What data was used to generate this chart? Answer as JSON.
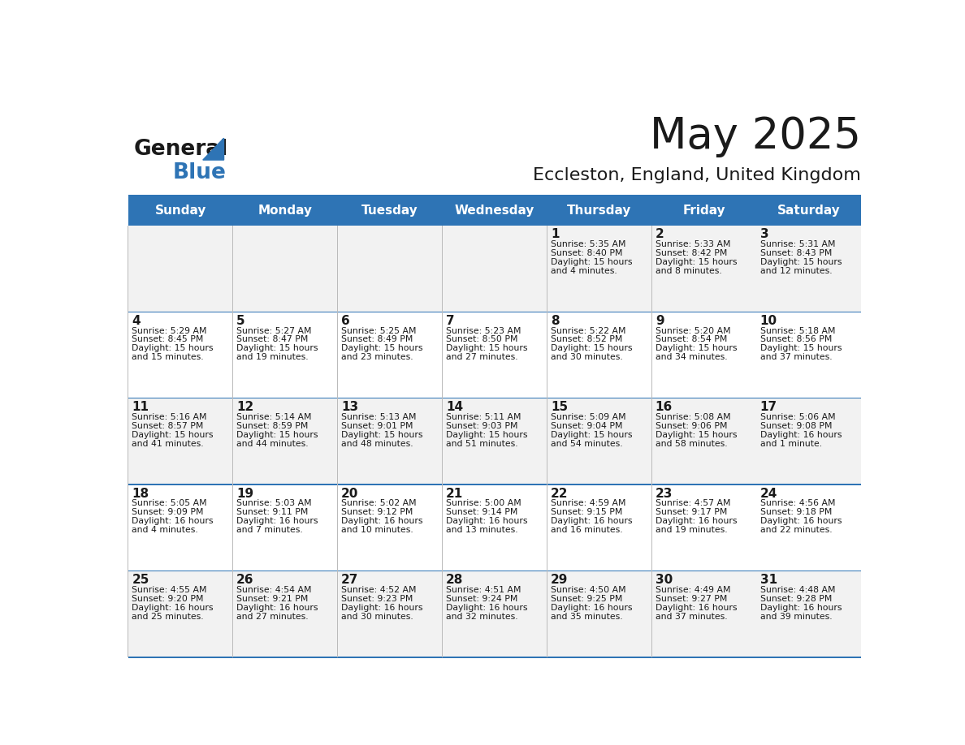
{
  "title": "May 2025",
  "subtitle": "Eccleston, England, United Kingdom",
  "header_color": "#2E74B5",
  "header_text_color": "#FFFFFF",
  "cell_bg_even": "#F2F2F2",
  "cell_bg_odd": "#FFFFFF",
  "day_headers": [
    "Sunday",
    "Monday",
    "Tuesday",
    "Wednesday",
    "Thursday",
    "Friday",
    "Saturday"
  ],
  "logo_text1": "General",
  "logo_text2": "Blue",
  "weeks": [
    [
      {
        "day": "",
        "sunrise": "",
        "sunset": "",
        "daylight": ""
      },
      {
        "day": "",
        "sunrise": "",
        "sunset": "",
        "daylight": ""
      },
      {
        "day": "",
        "sunrise": "",
        "sunset": "",
        "daylight": ""
      },
      {
        "day": "",
        "sunrise": "",
        "sunset": "",
        "daylight": ""
      },
      {
        "day": "1",
        "sunrise": "Sunrise: 5:35 AM",
        "sunset": "Sunset: 8:40 PM",
        "daylight": "Daylight: 15 hours\nand 4 minutes."
      },
      {
        "day": "2",
        "sunrise": "Sunrise: 5:33 AM",
        "sunset": "Sunset: 8:42 PM",
        "daylight": "Daylight: 15 hours\nand 8 minutes."
      },
      {
        "day": "3",
        "sunrise": "Sunrise: 5:31 AM",
        "sunset": "Sunset: 8:43 PM",
        "daylight": "Daylight: 15 hours\nand 12 minutes."
      }
    ],
    [
      {
        "day": "4",
        "sunrise": "Sunrise: 5:29 AM",
        "sunset": "Sunset: 8:45 PM",
        "daylight": "Daylight: 15 hours\nand 15 minutes."
      },
      {
        "day": "5",
        "sunrise": "Sunrise: 5:27 AM",
        "sunset": "Sunset: 8:47 PM",
        "daylight": "Daylight: 15 hours\nand 19 minutes."
      },
      {
        "day": "6",
        "sunrise": "Sunrise: 5:25 AM",
        "sunset": "Sunset: 8:49 PM",
        "daylight": "Daylight: 15 hours\nand 23 minutes."
      },
      {
        "day": "7",
        "sunrise": "Sunrise: 5:23 AM",
        "sunset": "Sunset: 8:50 PM",
        "daylight": "Daylight: 15 hours\nand 27 minutes."
      },
      {
        "day": "8",
        "sunrise": "Sunrise: 5:22 AM",
        "sunset": "Sunset: 8:52 PM",
        "daylight": "Daylight: 15 hours\nand 30 minutes."
      },
      {
        "day": "9",
        "sunrise": "Sunrise: 5:20 AM",
        "sunset": "Sunset: 8:54 PM",
        "daylight": "Daylight: 15 hours\nand 34 minutes."
      },
      {
        "day": "10",
        "sunrise": "Sunrise: 5:18 AM",
        "sunset": "Sunset: 8:56 PM",
        "daylight": "Daylight: 15 hours\nand 37 minutes."
      }
    ],
    [
      {
        "day": "11",
        "sunrise": "Sunrise: 5:16 AM",
        "sunset": "Sunset: 8:57 PM",
        "daylight": "Daylight: 15 hours\nand 41 minutes."
      },
      {
        "day": "12",
        "sunrise": "Sunrise: 5:14 AM",
        "sunset": "Sunset: 8:59 PM",
        "daylight": "Daylight: 15 hours\nand 44 minutes."
      },
      {
        "day": "13",
        "sunrise": "Sunrise: 5:13 AM",
        "sunset": "Sunset: 9:01 PM",
        "daylight": "Daylight: 15 hours\nand 48 minutes."
      },
      {
        "day": "14",
        "sunrise": "Sunrise: 5:11 AM",
        "sunset": "Sunset: 9:03 PM",
        "daylight": "Daylight: 15 hours\nand 51 minutes."
      },
      {
        "day": "15",
        "sunrise": "Sunrise: 5:09 AM",
        "sunset": "Sunset: 9:04 PM",
        "daylight": "Daylight: 15 hours\nand 54 minutes."
      },
      {
        "day": "16",
        "sunrise": "Sunrise: 5:08 AM",
        "sunset": "Sunset: 9:06 PM",
        "daylight": "Daylight: 15 hours\nand 58 minutes."
      },
      {
        "day": "17",
        "sunrise": "Sunrise: 5:06 AM",
        "sunset": "Sunset: 9:08 PM",
        "daylight": "Daylight: 16 hours\nand 1 minute."
      }
    ],
    [
      {
        "day": "18",
        "sunrise": "Sunrise: 5:05 AM",
        "sunset": "Sunset: 9:09 PM",
        "daylight": "Daylight: 16 hours\nand 4 minutes."
      },
      {
        "day": "19",
        "sunrise": "Sunrise: 5:03 AM",
        "sunset": "Sunset: 9:11 PM",
        "daylight": "Daylight: 16 hours\nand 7 minutes."
      },
      {
        "day": "20",
        "sunrise": "Sunrise: 5:02 AM",
        "sunset": "Sunset: 9:12 PM",
        "daylight": "Daylight: 16 hours\nand 10 minutes."
      },
      {
        "day": "21",
        "sunrise": "Sunrise: 5:00 AM",
        "sunset": "Sunset: 9:14 PM",
        "daylight": "Daylight: 16 hours\nand 13 minutes."
      },
      {
        "day": "22",
        "sunrise": "Sunrise: 4:59 AM",
        "sunset": "Sunset: 9:15 PM",
        "daylight": "Daylight: 16 hours\nand 16 minutes."
      },
      {
        "day": "23",
        "sunrise": "Sunrise: 4:57 AM",
        "sunset": "Sunset: 9:17 PM",
        "daylight": "Daylight: 16 hours\nand 19 minutes."
      },
      {
        "day": "24",
        "sunrise": "Sunrise: 4:56 AM",
        "sunset": "Sunset: 9:18 PM",
        "daylight": "Daylight: 16 hours\nand 22 minutes."
      }
    ],
    [
      {
        "day": "25",
        "sunrise": "Sunrise: 4:55 AM",
        "sunset": "Sunset: 9:20 PM",
        "daylight": "Daylight: 16 hours\nand 25 minutes."
      },
      {
        "day": "26",
        "sunrise": "Sunrise: 4:54 AM",
        "sunset": "Sunset: 9:21 PM",
        "daylight": "Daylight: 16 hours\nand 27 minutes."
      },
      {
        "day": "27",
        "sunrise": "Sunrise: 4:52 AM",
        "sunset": "Sunset: 9:23 PM",
        "daylight": "Daylight: 16 hours\nand 30 minutes."
      },
      {
        "day": "28",
        "sunrise": "Sunrise: 4:51 AM",
        "sunset": "Sunset: 9:24 PM",
        "daylight": "Daylight: 16 hours\nand 32 minutes."
      },
      {
        "day": "29",
        "sunrise": "Sunrise: 4:50 AM",
        "sunset": "Sunset: 9:25 PM",
        "daylight": "Daylight: 16 hours\nand 35 minutes."
      },
      {
        "day": "30",
        "sunrise": "Sunrise: 4:49 AM",
        "sunset": "Sunset: 9:27 PM",
        "daylight": "Daylight: 16 hours\nand 37 minutes."
      },
      {
        "day": "31",
        "sunrise": "Sunrise: 4:48 AM",
        "sunset": "Sunset: 9:28 PM",
        "daylight": "Daylight: 16 hours\nand 39 minutes."
      }
    ]
  ]
}
